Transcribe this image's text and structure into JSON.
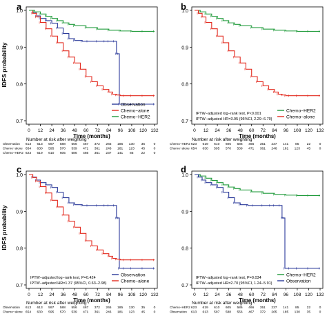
{
  "figure": {
    "ylabel": "IDFS probability",
    "xlabel": "Time (months)",
    "risk_title": "Number at risk after weighting"
  },
  "colors": {
    "observation": "#2b3a9a",
    "chemo_alone": "#e32a1f",
    "chemo_her2": "#1f9a3a"
  },
  "chart_data": [
    {
      "type": "line",
      "panel": "a",
      "xlabel": "Time (months)",
      "ylabel": "IDFS probability",
      "xlim": [
        0,
        132
      ],
      "ylim": [
        0.7,
        1.0
      ],
      "xticks": [
        "0",
        "12",
        "24",
        "36",
        "48",
        "60",
        "72",
        "84",
        "96",
        "108",
        "120",
        "132"
      ],
      "yticks": [
        "0.7",
        "0.8",
        "0.9",
        "1.0"
      ],
      "legend": {
        "position": "bottom-right",
        "entries": [
          {
            "name": "Observation",
            "color_key": "observation"
          },
          {
            "name": "Chemo−alone",
            "color_key": "chemo_alone"
          },
          {
            "name": "Chemo−HER2",
            "color_key": "chemo_her2"
          }
        ]
      },
      "annotations": [],
      "series": [
        {
          "name": "Observation",
          "color_key": "observation",
          "x": [
            0,
            4,
            8,
            12,
            18,
            24,
            30,
            36,
            42,
            48,
            56,
            62,
            72,
            80,
            84,
            90,
            92,
            94,
            95,
            100,
            108,
            120,
            132
          ],
          "y": [
            1.0,
            0.993,
            0.985,
            0.978,
            0.972,
            0.965,
            0.952,
            0.937,
            0.923,
            0.918,
            0.916,
            0.916,
            0.916,
            0.916,
            0.916,
            0.916,
            0.882,
            0.882,
            0.745,
            0.745,
            0.745,
            0.745,
            0.745
          ]
        },
        {
          "name": "Chemo−alone",
          "color_key": "chemo_alone",
          "x": [
            0,
            4,
            8,
            12,
            18,
            24,
            30,
            36,
            42,
            48,
            54,
            60,
            66,
            72,
            78,
            84,
            88,
            92,
            96,
            100,
            108,
            120,
            132
          ],
          "y": [
            1.0,
            0.992,
            0.982,
            0.967,
            0.95,
            0.93,
            0.912,
            0.89,
            0.873,
            0.857,
            0.84,
            0.82,
            0.806,
            0.795,
            0.785,
            0.778,
            0.772,
            0.77,
            0.768,
            0.768,
            0.768,
            0.768,
            0.768
          ]
        },
        {
          "name": "Chemo−HER2",
          "color_key": "chemo_her2",
          "x": [
            0,
            6,
            12,
            18,
            24,
            30,
            36,
            42,
            48,
            60,
            72,
            84,
            96,
            108,
            120,
            132
          ],
          "y": [
            1.0,
            0.996,
            0.99,
            0.984,
            0.978,
            0.972,
            0.966,
            0.962,
            0.958,
            0.953,
            0.949,
            0.946,
            0.944,
            0.943,
            0.943,
            0.943
          ]
        }
      ],
      "risk_table": {
        "rows": [
          {
            "name": "Observation",
            "values": [
              "613",
              "613",
              "597",
              "588",
              "556",
              "467",
              "372",
              "265",
              "185",
              "130",
              "35",
              "0"
            ]
          },
          {
            "name": "Chemo−alone",
            "values": [
              "654",
              "630",
              "595",
              "570",
              "539",
              "471",
              "361",
              "246",
              "181",
              "123",
              "45",
              "0"
            ]
          },
          {
            "name": "Chemo−HER2",
            "values": [
              "623",
              "619",
              "610",
              "605",
              "586",
              "466",
              "351",
              "237",
              "141",
              "85",
              "22",
              "0"
            ]
          }
        ]
      }
    },
    {
      "type": "line",
      "panel": "b",
      "xlabel": "Time (months)",
      "ylabel": "",
      "xlim": [
        0,
        132
      ],
      "ylim": [
        0.7,
        1.0
      ],
      "xticks": [
        "0",
        "12",
        "24",
        "36",
        "48",
        "60",
        "72",
        "84",
        "96",
        "108",
        "120",
        "132"
      ],
      "yticks": [
        "0.7",
        "0.8",
        "0.9",
        "1.0"
      ],
      "legend": {
        "position": "bottom-right",
        "entries": [
          {
            "name": "Chemo−HER2",
            "color_key": "chemo_her2"
          },
          {
            "name": "Chemo−alone",
            "color_key": "chemo_alone"
          }
        ]
      },
      "annotations": [
        "IPTW−adjusted log−rank test, P<0.001",
        "IPTW−adjusted HR=3.95 (95%CI, 2.29−6.79)"
      ],
      "series": [
        {
          "name": "Chemo−HER2",
          "color_key": "chemo_her2",
          "x": [
            0,
            6,
            12,
            18,
            24,
            30,
            36,
            42,
            48,
            60,
            72,
            84,
            96,
            108,
            120,
            132
          ],
          "y": [
            1.0,
            0.996,
            0.99,
            0.984,
            0.978,
            0.972,
            0.966,
            0.962,
            0.958,
            0.953,
            0.949,
            0.946,
            0.944,
            0.943,
            0.943,
            0.943
          ]
        },
        {
          "name": "Chemo−alone",
          "color_key": "chemo_alone",
          "x": [
            0,
            4,
            8,
            12,
            18,
            24,
            30,
            36,
            42,
            48,
            54,
            60,
            66,
            72,
            78,
            84,
            88,
            92,
            96,
            100,
            108,
            120,
            132
          ],
          "y": [
            1.0,
            0.992,
            0.982,
            0.967,
            0.95,
            0.93,
            0.912,
            0.89,
            0.873,
            0.857,
            0.84,
            0.82,
            0.806,
            0.795,
            0.785,
            0.778,
            0.772,
            0.77,
            0.768,
            0.768,
            0.768,
            0.768,
            0.768
          ]
        }
      ],
      "risk_table": {
        "rows": [
          {
            "name": "Chemo−HER2",
            "values": [
              "623",
              "619",
              "610",
              "605",
              "586",
              "466",
              "351",
              "237",
              "141",
              "85",
              "22",
              "0"
            ]
          },
          {
            "name": "Chemo−alone",
            "values": [
              "654",
              "630",
              "595",
              "570",
              "539",
              "471",
              "361",
              "246",
              "181",
              "123",
              "45",
              "0"
            ]
          }
        ]
      }
    },
    {
      "type": "line",
      "panel": "c",
      "xlabel": "Time (months)",
      "ylabel": "IDFS probability",
      "xlim": [
        0,
        132
      ],
      "ylim": [
        0.7,
        1.0
      ],
      "xticks": [
        "0",
        "12",
        "24",
        "36",
        "48",
        "60",
        "72",
        "84",
        "96",
        "108",
        "120",
        "132"
      ],
      "yticks": [
        "0.7",
        "0.8",
        "0.9",
        "1.0"
      ],
      "legend": {
        "position": "bottom-right",
        "entries": [
          {
            "name": "Observation",
            "color_key": "observation"
          },
          {
            "name": "Chemo−alone",
            "color_key": "chemo_alone"
          }
        ]
      },
      "annotations": [
        "IPTW−adjusted log−rank test, P=0.424",
        "IPTW−adjusted HR=1.37 (95%CI, 0.63−2.98)"
      ],
      "series": [
        {
          "name": "Observation",
          "color_key": "observation",
          "x": [
            0,
            4,
            8,
            12,
            18,
            24,
            30,
            36,
            42,
            48,
            56,
            62,
            72,
            80,
            84,
            90,
            92,
            94,
            95,
            100,
            108,
            120,
            132
          ],
          "y": [
            1.0,
            0.993,
            0.985,
            0.978,
            0.972,
            0.965,
            0.952,
            0.937,
            0.923,
            0.918,
            0.916,
            0.916,
            0.916,
            0.916,
            0.916,
            0.916,
            0.882,
            0.882,
            0.745,
            0.745,
            0.745,
            0.745,
            0.745
          ]
        },
        {
          "name": "Chemo−alone",
          "color_key": "chemo_alone",
          "x": [
            0,
            4,
            8,
            12,
            18,
            24,
            30,
            36,
            42,
            48,
            54,
            60,
            66,
            72,
            78,
            84,
            88,
            92,
            96,
            100,
            108,
            120,
            132
          ],
          "y": [
            1.0,
            0.992,
            0.982,
            0.967,
            0.95,
            0.93,
            0.912,
            0.89,
            0.873,
            0.857,
            0.84,
            0.82,
            0.806,
            0.795,
            0.785,
            0.778,
            0.772,
            0.77,
            0.768,
            0.768,
            0.768,
            0.768,
            0.768
          ]
        }
      ],
      "risk_table": {
        "rows": [
          {
            "name": "Observation",
            "values": [
              "613",
              "613",
              "597",
              "588",
              "556",
              "467",
              "372",
              "265",
              "185",
              "130",
              "35",
              "0"
            ]
          },
          {
            "name": "Chemo−alone",
            "values": [
              "654",
              "630",
              "595",
              "570",
              "539",
              "471",
              "361",
              "246",
              "181",
              "123",
              "45",
              "0"
            ]
          }
        ]
      }
    },
    {
      "type": "line",
      "panel": "d",
      "xlabel": "Time (months)",
      "ylabel": "",
      "xlim": [
        0,
        132
      ],
      "ylim": [
        0.7,
        1.0
      ],
      "xticks": [
        "0",
        "12",
        "24",
        "36",
        "48",
        "60",
        "72",
        "84",
        "96",
        "108",
        "120",
        "132"
      ],
      "yticks": [
        "0.7",
        "0.8",
        "0.9",
        "1.0"
      ],
      "legend": {
        "position": "bottom-right",
        "entries": [
          {
            "name": "Chemo−HER2",
            "color_key": "chemo_her2"
          },
          {
            "name": "Observation",
            "color_key": "observation"
          }
        ]
      },
      "annotations": [
        "IPTW−adjusted log−rank test, P=0.034",
        "IPTW−adjusted HR=2.70 (95%CI, 1.24−5.91)"
      ],
      "series": [
        {
          "name": "Chemo−HER2",
          "color_key": "chemo_her2",
          "x": [
            0,
            6,
            12,
            18,
            24,
            30,
            36,
            42,
            48,
            60,
            72,
            84,
            96,
            108,
            120,
            132
          ],
          "y": [
            1.0,
            0.996,
            0.99,
            0.984,
            0.978,
            0.972,
            0.966,
            0.962,
            0.958,
            0.953,
            0.949,
            0.946,
            0.944,
            0.943,
            0.943,
            0.943
          ]
        },
        {
          "name": "Observation",
          "color_key": "observation",
          "x": [
            0,
            4,
            8,
            12,
            18,
            24,
            30,
            36,
            42,
            48,
            56,
            62,
            72,
            80,
            84,
            90,
            92,
            94,
            95,
            100,
            108,
            120,
            132
          ],
          "y": [
            1.0,
            0.993,
            0.985,
            0.978,
            0.972,
            0.965,
            0.952,
            0.937,
            0.923,
            0.918,
            0.916,
            0.916,
            0.916,
            0.916,
            0.916,
            0.916,
            0.882,
            0.882,
            0.745,
            0.745,
            0.745,
            0.745,
            0.745
          ]
        }
      ],
      "risk_table": {
        "rows": [
          {
            "name": "Chemo−HER2",
            "values": [
              "623",
              "619",
              "610",
              "605",
              "586",
              "466",
              "351",
              "237",
              "141",
              "85",
              "22",
              "0"
            ]
          },
          {
            "name": "Observation",
            "values": [
              "613",
              "613",
              "597",
              "588",
              "556",
              "467",
              "372",
              "265",
              "185",
              "130",
              "35",
              "0"
            ]
          }
        ]
      }
    }
  ]
}
